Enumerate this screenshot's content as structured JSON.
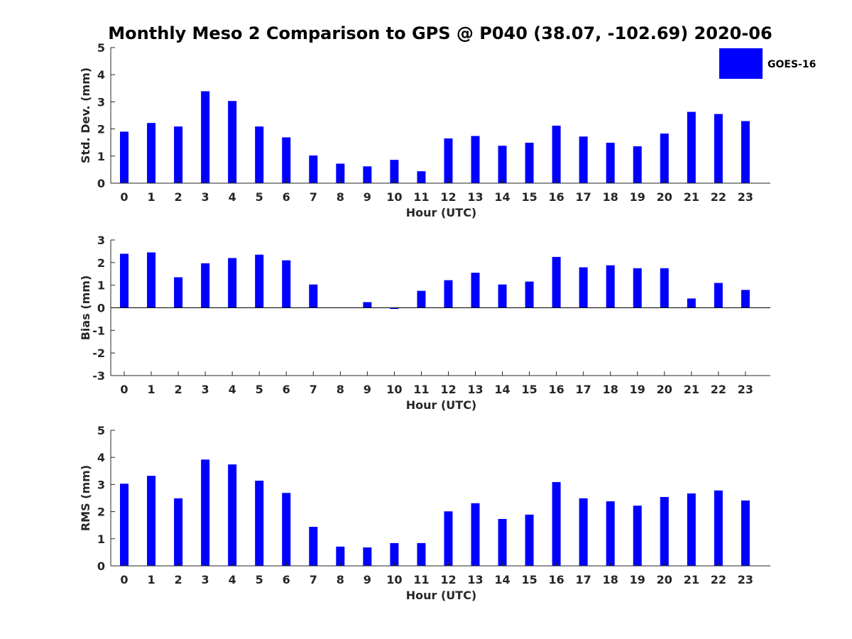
{
  "figure": {
    "title": "Monthly Meso 2 Comparison to GPS @ P040 (38.07, -102.69) 2020-06"
  },
  "legend": {
    "label": "GOES-16",
    "color": "#0000ff",
    "placement": "top-right"
  },
  "chart_data": [
    {
      "type": "bar",
      "name": "std-dev",
      "xlabel": "Hour (UTC)",
      "ylabel": "Std. Dev. (mm)",
      "categories": [
        "0",
        "1",
        "2",
        "3",
        "4",
        "5",
        "6",
        "7",
        "8",
        "9",
        "10",
        "11",
        "12",
        "13",
        "14",
        "15",
        "16",
        "17",
        "18",
        "19",
        "20",
        "21",
        "22",
        "23"
      ],
      "ylim": [
        0,
        5
      ],
      "yticks": [
        "0",
        "1",
        "2",
        "3",
        "4",
        "5"
      ],
      "grid": false,
      "series": [
        {
          "name": "GOES-16",
          "color": "#0000ff",
          "values": [
            1.9,
            2.22,
            2.09,
            3.39,
            3.03,
            2.09,
            1.69,
            1.02,
            0.72,
            0.62,
            0.86,
            0.44,
            1.65,
            1.74,
            1.38,
            1.49,
            2.12,
            1.72,
            1.49,
            1.36,
            1.83,
            2.63,
            2.55,
            2.29
          ]
        }
      ]
    },
    {
      "type": "bar",
      "name": "bias",
      "xlabel": "Hour (UTC)",
      "ylabel": "Bias (mm)",
      "categories": [
        "0",
        "1",
        "2",
        "3",
        "4",
        "5",
        "6",
        "7",
        "8",
        "9",
        "10",
        "11",
        "12",
        "13",
        "14",
        "15",
        "16",
        "17",
        "18",
        "19",
        "20",
        "21",
        "22",
        "23"
      ],
      "ylim": [
        -3,
        3
      ],
      "yticks": [
        "-3",
        "-2",
        "-1",
        "0",
        "1",
        "2",
        "3"
      ],
      "zero_line": true,
      "grid": false,
      "series": [
        {
          "name": "GOES-16",
          "color": "#0000ff",
          "values": [
            2.39,
            2.45,
            1.35,
            1.97,
            2.2,
            2.35,
            2.1,
            1.03,
            0.0,
            0.25,
            -0.05,
            0.75,
            1.22,
            1.55,
            1.03,
            1.16,
            2.25,
            1.79,
            1.88,
            1.75,
            1.75,
            0.41,
            1.1,
            0.79
          ]
        }
      ]
    },
    {
      "type": "bar",
      "name": "rms",
      "xlabel": "Hour (UTC)",
      "ylabel": "RMS (mm)",
      "categories": [
        "0",
        "1",
        "2",
        "3",
        "4",
        "5",
        "6",
        "7",
        "8",
        "9",
        "10",
        "11",
        "12",
        "13",
        "14",
        "15",
        "16",
        "17",
        "18",
        "19",
        "20",
        "21",
        "22",
        "23"
      ],
      "ylim": [
        0,
        5
      ],
      "yticks": [
        "0",
        "1",
        "2",
        "3",
        "4",
        "5"
      ],
      "grid": false,
      "series": [
        {
          "name": "GOES-16",
          "color": "#0000ff",
          "values": [
            3.03,
            3.32,
            2.49,
            3.92,
            3.74,
            3.14,
            2.69,
            1.44,
            0.71,
            0.68,
            0.84,
            0.84,
            2.01,
            2.31,
            1.73,
            1.89,
            3.09,
            2.49,
            2.38,
            2.22,
            2.54,
            2.67,
            2.78,
            2.41
          ]
        }
      ]
    }
  ]
}
